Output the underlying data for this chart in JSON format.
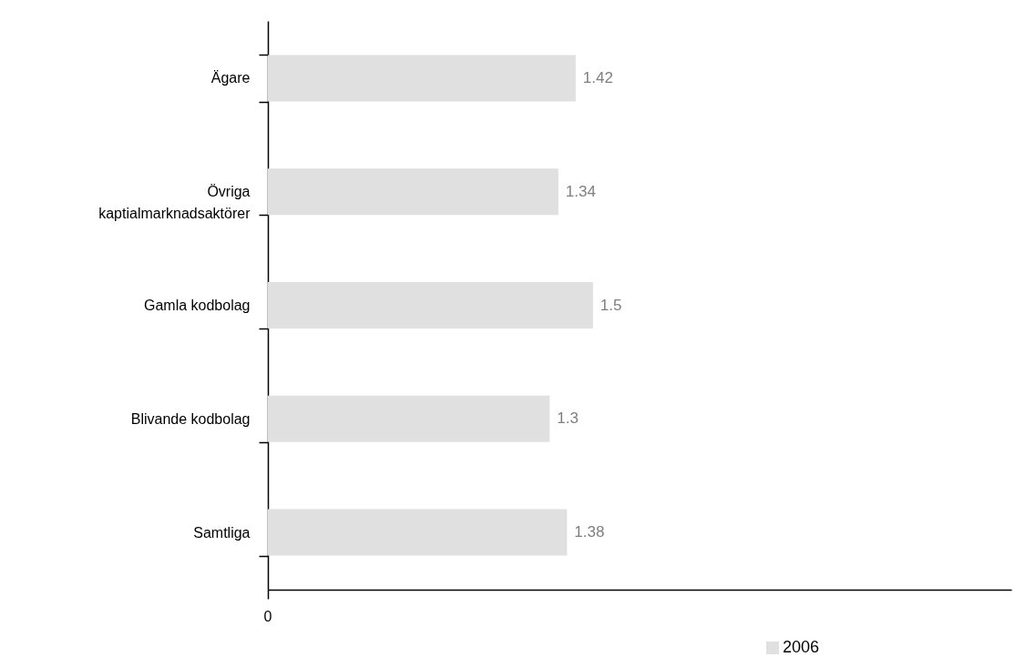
{
  "chart_data": {
    "type": "bar",
    "orientation": "horizontal",
    "categories": [
      "Ägare",
      "Övriga kaptialmarknadsaktörer",
      "Gamla kodbolag",
      "Blivande kodbolag",
      "Samtliga"
    ],
    "series": [
      {
        "name": "2006",
        "color": "#e0e0e0",
        "values": [
          1.42,
          1.34,
          1.5,
          1.3,
          1.38
        ]
      }
    ],
    "xlim": [
      0,
      3.43
    ],
    "annotations": [
      "0"
    ],
    "data_labels": true,
    "legend": "bottom",
    "grid": false
  }
}
